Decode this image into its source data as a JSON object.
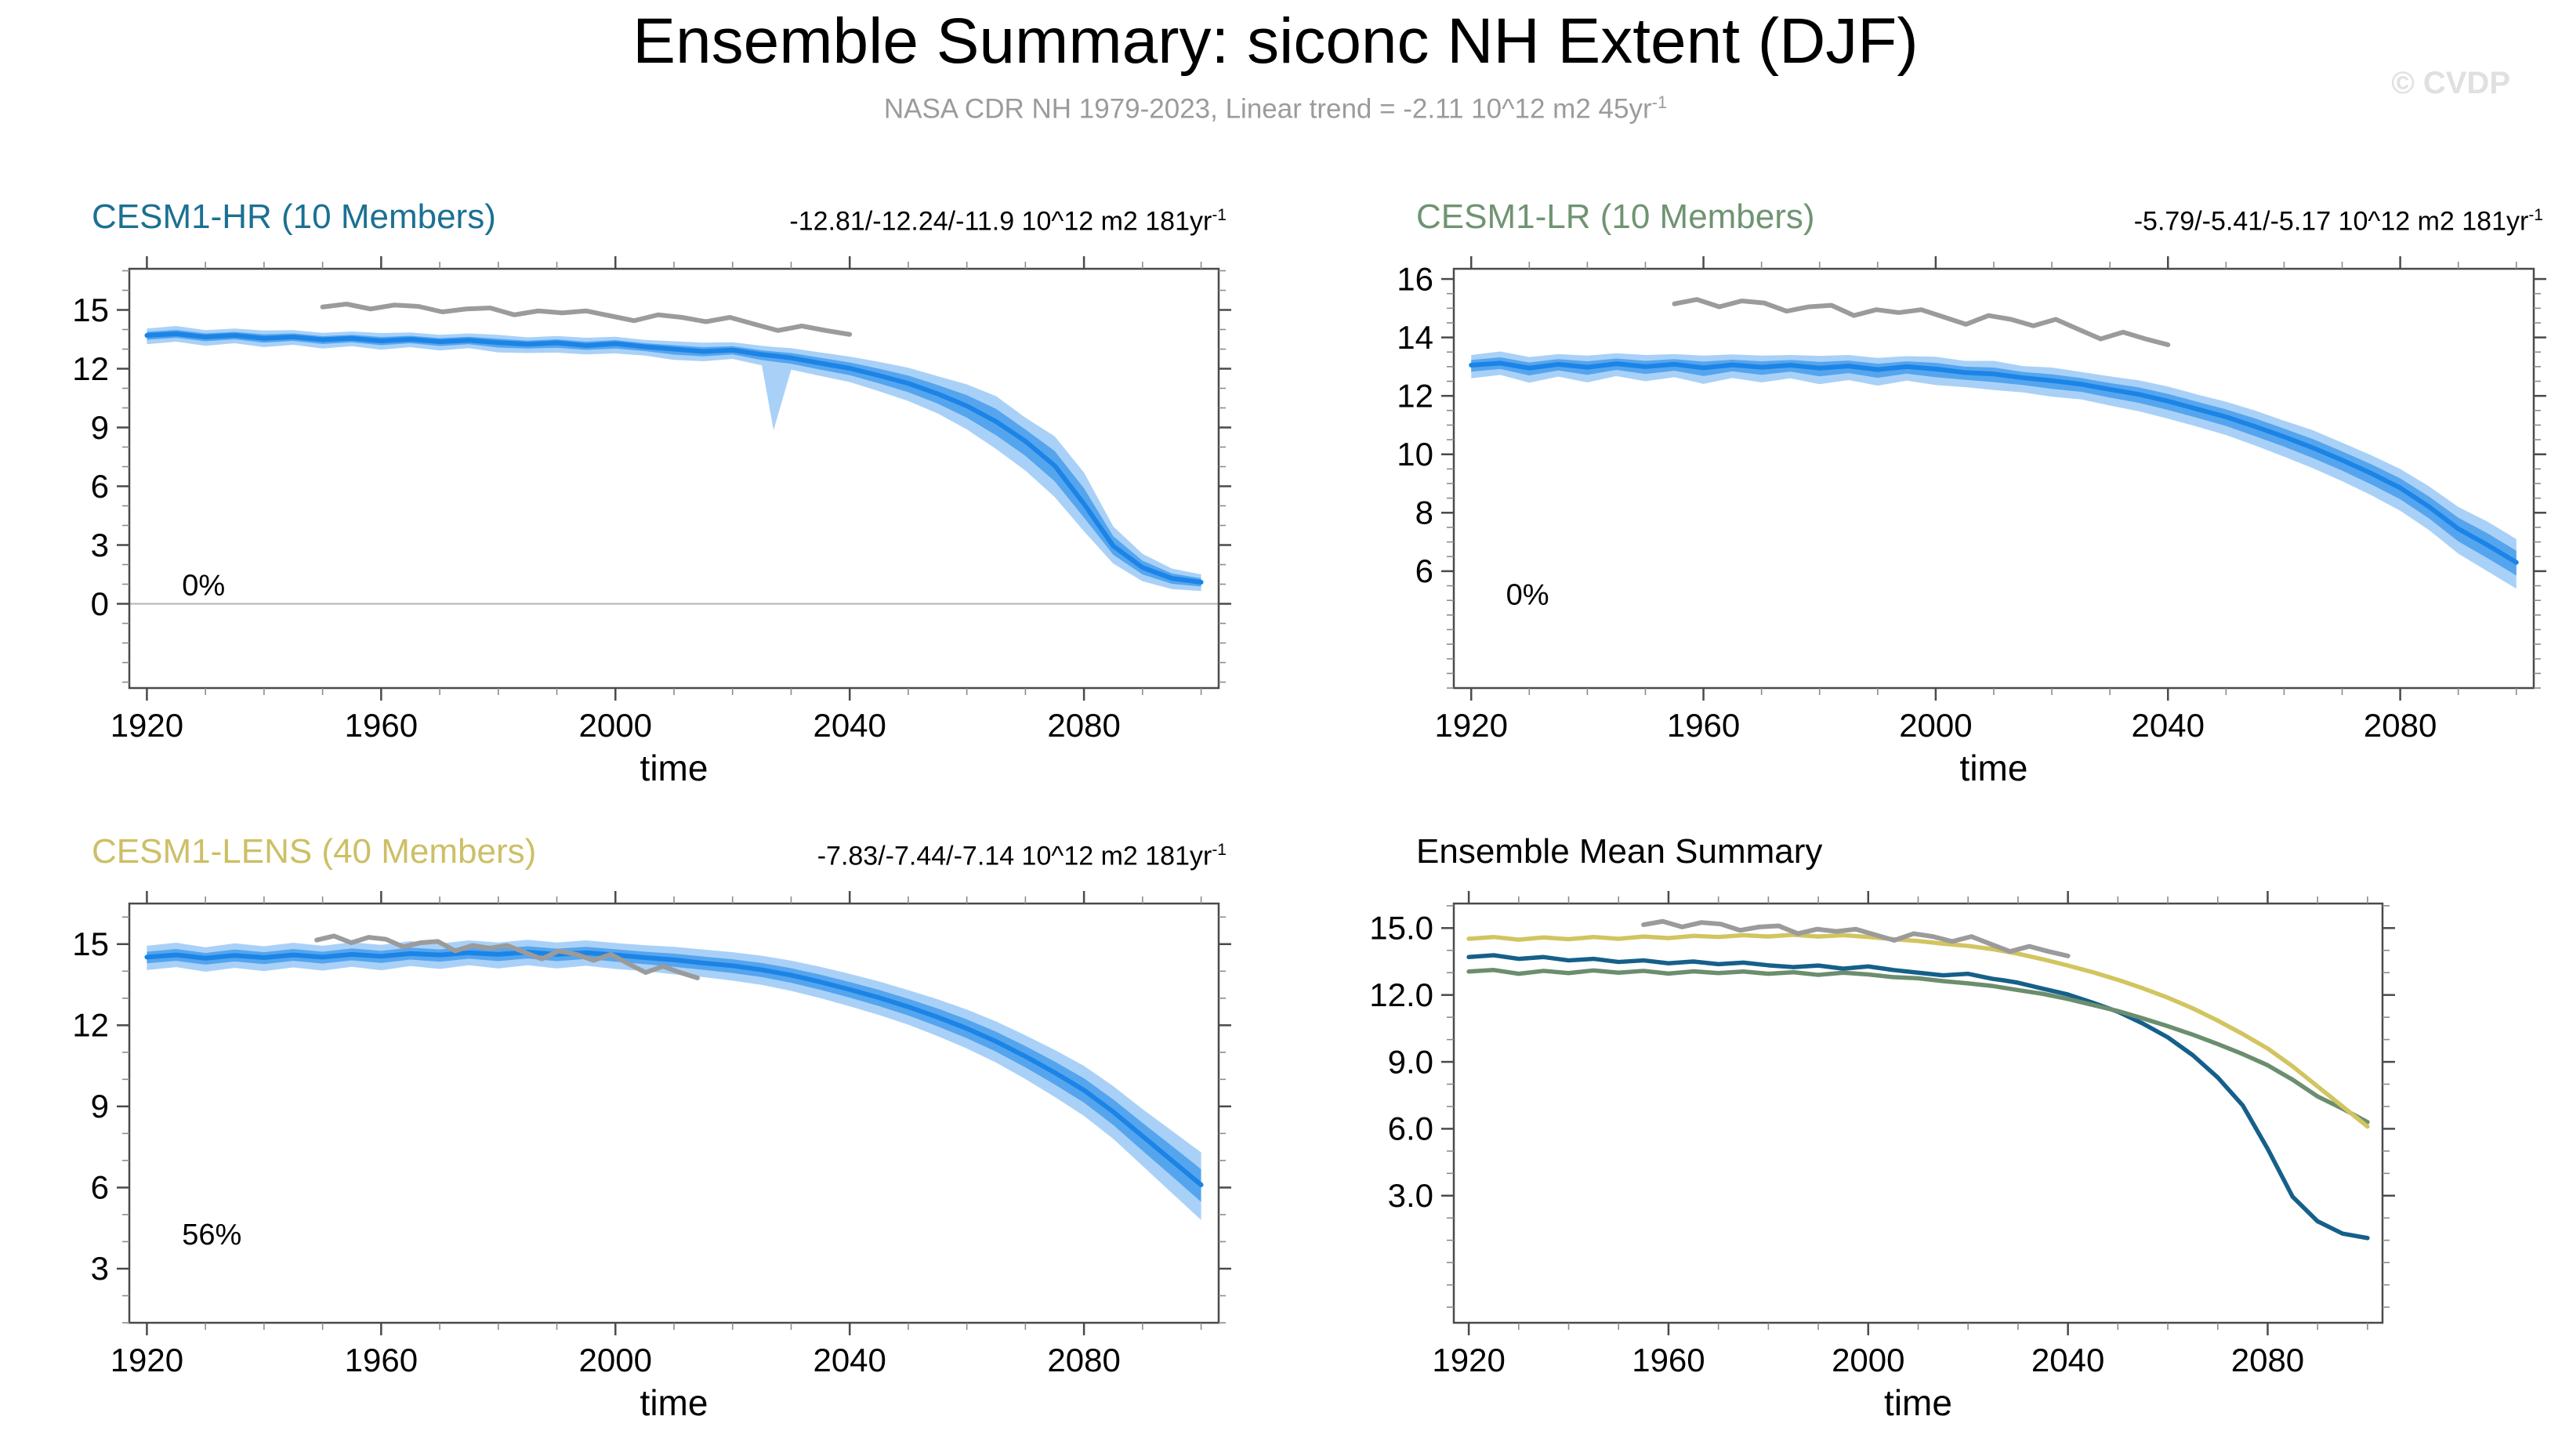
{
  "header": {
    "title": "Ensemble Summary: siconc NH Extent (DJF)",
    "subtitle_text": "NASA CDR NH 1979-2023, Linear trend = -2.11 10^12 m2 45yr",
    "subtitle_sup": "-1",
    "watermark": "© CVDP"
  },
  "obs_series": {
    "name": "NASA CDR NH 1979-2023",
    "color": "#9b9b9b",
    "years": [
      1979,
      1981,
      1983,
      1985,
      1987,
      1989,
      1991,
      1993,
      1995,
      1997,
      1999,
      2001,
      2003,
      2005,
      2007,
      2009,
      2011,
      2013,
      2015,
      2017,
      2019,
      2021,
      2023
    ],
    "values": [
      15.15,
      15.3,
      15.05,
      15.25,
      15.18,
      14.9,
      15.05,
      15.1,
      14.75,
      14.95,
      14.85,
      14.95,
      14.7,
      14.45,
      14.75,
      14.62,
      14.4,
      14.62,
      14.28,
      13.95,
      14.18,
      13.95,
      13.75
    ]
  },
  "chart_data": [
    {
      "id": "cesm1-hr",
      "type": "line",
      "title": "CESM1-HR (10 Members)",
      "title_color": "#1b7093",
      "trend_text": "-12.81/-12.24/-11.9 10^12 m2 181yr",
      "trend_sup": "-1",
      "xlabel": "time",
      "xlim": [
        1917,
        2103
      ],
      "ylim": [
        -4.3,
        17.1
      ],
      "xticks": [
        1920,
        1960,
        2000,
        2040,
        2080
      ],
      "xminor": 10,
      "yticks": [
        0,
        3,
        6,
        9,
        12,
        15
      ],
      "ylabels": [
        "0",
        "3",
        "6",
        "9",
        "12",
        "15"
      ],
      "yminor": 1,
      "zero_line": true,
      "annotation": {
        "text": "0%",
        "x": 1926,
        "y": 0.45
      },
      "band_outer_color": "#a9d1f8",
      "band_inner_color": "#55a5ee",
      "mean_color": "#1b84e6",
      "obs_axis_span": [
        1950,
        2040
      ],
      "years": [
        1920,
        1925,
        1930,
        1935,
        1940,
        1945,
        1950,
        1955,
        1960,
        1965,
        1970,
        1975,
        1980,
        1985,
        1990,
        1995,
        2000,
        2005,
        2010,
        2015,
        2020,
        2025,
        2027,
        2030,
        2035,
        2040,
        2045,
        2050,
        2055,
        2060,
        2065,
        2070,
        2075,
        2080,
        2085,
        2090,
        2095,
        2100
      ],
      "mean": [
        13.7,
        13.78,
        13.62,
        13.7,
        13.55,
        13.62,
        13.48,
        13.55,
        13.42,
        13.5,
        13.38,
        13.45,
        13.33,
        13.25,
        13.32,
        13.18,
        13.28,
        13.12,
        13.0,
        12.88,
        12.95,
        12.72,
        12.66,
        12.55,
        12.28,
        12.02,
        11.65,
        11.25,
        10.72,
        10.1,
        9.3,
        8.3,
        7.05,
        5.1,
        2.95,
        1.85,
        1.3,
        1.1
      ],
      "outer_hi": [
        0.35,
        0.4,
        0.35,
        0.35,
        0.4,
        0.35,
        0.35,
        0.35,
        0.4,
        0.35,
        0.35,
        0.35,
        0.4,
        0.35,
        0.35,
        0.4,
        0.35,
        0.35,
        0.4,
        0.45,
        0.4,
        0.45,
        0.45,
        0.5,
        0.55,
        0.6,
        0.7,
        0.8,
        0.9,
        1.1,
        1.3,
        1.2,
        1.5,
        1.6,
        1.0,
        0.7,
        0.5,
        0.4
      ],
      "outer_lo": [
        0.45,
        0.4,
        0.45,
        0.4,
        0.45,
        0.4,
        0.45,
        0.4,
        0.45,
        0.4,
        0.45,
        0.4,
        0.5,
        0.45,
        0.5,
        0.45,
        0.5,
        0.45,
        0.55,
        0.5,
        0.45,
        0.55,
        3.8,
        0.6,
        0.65,
        0.7,
        0.8,
        0.9,
        1.0,
        1.2,
        1.4,
        1.5,
        1.6,
        1.4,
        0.9,
        0.7,
        0.55,
        0.45
      ],
      "inner_hi": [
        0.18,
        0.2,
        0.18,
        0.18,
        0.2,
        0.18,
        0.18,
        0.18,
        0.2,
        0.18,
        0.18,
        0.18,
        0.2,
        0.18,
        0.18,
        0.2,
        0.18,
        0.18,
        0.2,
        0.22,
        0.2,
        0.22,
        0.22,
        0.25,
        0.28,
        0.3,
        0.35,
        0.4,
        0.45,
        0.55,
        0.65,
        0.6,
        0.75,
        0.8,
        0.5,
        0.35,
        0.25,
        0.2
      ],
      "inner_lo": [
        0.22,
        0.2,
        0.22,
        0.2,
        0.22,
        0.2,
        0.22,
        0.2,
        0.22,
        0.2,
        0.22,
        0.2,
        0.25,
        0.22,
        0.25,
        0.22,
        0.25,
        0.22,
        0.28,
        0.25,
        0.22,
        0.28,
        0.3,
        0.3,
        0.33,
        0.35,
        0.4,
        0.45,
        0.5,
        0.6,
        0.7,
        0.75,
        0.8,
        0.7,
        0.45,
        0.35,
        0.28,
        0.22
      ]
    },
    {
      "id": "cesm1-lr",
      "type": "line",
      "title": "CESM1-LR (10 Members)",
      "title_color": "#6f9472",
      "trend_text": "-5.79/-5.41/-5.17 10^12 m2 181yr",
      "trend_sup": "-1",
      "xlabel": "time",
      "xlim": [
        1917,
        2103
      ],
      "ylim": [
        2.0,
        16.35
      ],
      "xticks": [
        1920,
        1960,
        2000,
        2040,
        2080
      ],
      "xminor": 10,
      "yticks": [
        6,
        8,
        10,
        12,
        14,
        16
      ],
      "ylabels": [
        "6",
        "8",
        "10",
        "12",
        "14",
        "16"
      ],
      "yminor": 0.5,
      "zero_line": false,
      "annotation": {
        "text": "0%",
        "x": 1926,
        "y": 4.85
      },
      "band_outer_color": "#a9d1f8",
      "band_inner_color": "#55a5ee",
      "mean_color": "#1b84e6",
      "obs_axis_span": [
        1955,
        2040
      ],
      "years": [
        1920,
        1925,
        1930,
        1935,
        1940,
        1945,
        1950,
        1955,
        1960,
        1965,
        1970,
        1975,
        1980,
        1985,
        1990,
        1995,
        2000,
        2005,
        2010,
        2015,
        2020,
        2025,
        2030,
        2035,
        2040,
        2045,
        2050,
        2055,
        2060,
        2065,
        2070,
        2075,
        2080,
        2085,
        2090,
        2095,
        2100
      ],
      "mean": [
        13.05,
        13.12,
        12.95,
        13.08,
        12.98,
        13.1,
        13.0,
        13.08,
        12.96,
        13.06,
        12.98,
        13.05,
        12.95,
        13.02,
        12.9,
        13.0,
        12.92,
        12.8,
        12.75,
        12.62,
        12.52,
        12.4,
        12.22,
        12.05,
        11.82,
        11.55,
        11.28,
        10.95,
        10.6,
        10.22,
        9.8,
        9.35,
        8.85,
        8.2,
        7.45,
        6.9,
        6.3
      ],
      "outer_hi": [
        0.35,
        0.4,
        0.38,
        0.35,
        0.4,
        0.36,
        0.4,
        0.35,
        0.42,
        0.36,
        0.4,
        0.35,
        0.42,
        0.38,
        0.4,
        0.36,
        0.42,
        0.4,
        0.45,
        0.4,
        0.45,
        0.42,
        0.45,
        0.48,
        0.5,
        0.5,
        0.52,
        0.55,
        0.55,
        0.6,
        0.6,
        0.62,
        0.65,
        0.7,
        0.75,
        0.8,
        0.8
      ],
      "outer_lo": [
        0.45,
        0.4,
        0.5,
        0.42,
        0.52,
        0.42,
        0.5,
        0.44,
        0.55,
        0.45,
        0.52,
        0.45,
        0.55,
        0.48,
        0.55,
        0.48,
        0.55,
        0.5,
        0.55,
        0.5,
        0.55,
        0.52,
        0.55,
        0.58,
        0.6,
        0.6,
        0.62,
        0.65,
        0.68,
        0.7,
        0.72,
        0.75,
        0.78,
        0.8,
        0.85,
        0.9,
        0.9
      ],
      "inner_hi": [
        0.18,
        0.2,
        0.19,
        0.18,
        0.2,
        0.18,
        0.2,
        0.18,
        0.21,
        0.18,
        0.2,
        0.18,
        0.21,
        0.19,
        0.2,
        0.18,
        0.21,
        0.2,
        0.22,
        0.2,
        0.22,
        0.21,
        0.22,
        0.24,
        0.25,
        0.25,
        0.26,
        0.28,
        0.28,
        0.3,
        0.3,
        0.31,
        0.33,
        0.35,
        0.38,
        0.4,
        0.4
      ],
      "inner_lo": [
        0.22,
        0.2,
        0.25,
        0.21,
        0.26,
        0.21,
        0.25,
        0.22,
        0.28,
        0.22,
        0.26,
        0.22,
        0.28,
        0.24,
        0.28,
        0.24,
        0.28,
        0.25,
        0.28,
        0.25,
        0.28,
        0.26,
        0.28,
        0.29,
        0.3,
        0.3,
        0.31,
        0.33,
        0.34,
        0.35,
        0.36,
        0.38,
        0.39,
        0.4,
        0.43,
        0.45,
        0.45
      ]
    },
    {
      "id": "cesm1-lens",
      "type": "line",
      "title": "CESM1-LENS (40 Members)",
      "title_color": "#cdbf66",
      "trend_text": "-7.83/-7.44/-7.14 10^12 m2 181yr",
      "trend_sup": "-1",
      "xlabel": "time",
      "xlim": [
        1917,
        2103
      ],
      "ylim": [
        1.0,
        16.5
      ],
      "xticks": [
        1920,
        1960,
        2000,
        2040,
        2080
      ],
      "xminor": 10,
      "yticks": [
        3,
        6,
        9,
        12,
        15
      ],
      "ylabels": [
        "3",
        "6",
        "9",
        "12",
        "15"
      ],
      "yminor": 1,
      "zero_line": false,
      "annotation": {
        "text": "56%",
        "x": 1926,
        "y": 3.9
      },
      "band_outer_color": "#a9d1f8",
      "band_inner_color": "#55a5ee",
      "mean_color": "#1b84e6",
      "obs_axis_span": [
        1949,
        2014
      ],
      "years": [
        1920,
        1925,
        1930,
        1935,
        1940,
        1945,
        1950,
        1955,
        1960,
        1965,
        1970,
        1975,
        1980,
        1985,
        1990,
        1995,
        2000,
        2005,
        2010,
        2015,
        2020,
        2025,
        2030,
        2035,
        2040,
        2045,
        2050,
        2055,
        2060,
        2065,
        2070,
        2075,
        2080,
        2085,
        2090,
        2095,
        2100
      ],
      "mean": [
        14.52,
        14.6,
        14.48,
        14.58,
        14.5,
        14.6,
        14.52,
        14.62,
        14.55,
        14.65,
        14.6,
        14.68,
        14.62,
        14.7,
        14.62,
        14.68,
        14.6,
        14.5,
        14.42,
        14.3,
        14.2,
        14.05,
        13.85,
        13.6,
        13.32,
        13.02,
        12.68,
        12.3,
        11.88,
        11.4,
        10.85,
        10.25,
        9.6,
        8.8,
        7.9,
        7.0,
        6.1
      ],
      "outer_hi": [
        0.42,
        0.45,
        0.4,
        0.45,
        0.42,
        0.45,
        0.42,
        0.45,
        0.42,
        0.46,
        0.42,
        0.46,
        0.44,
        0.46,
        0.44,
        0.46,
        0.44,
        0.46,
        0.48,
        0.5,
        0.5,
        0.52,
        0.54,
        0.56,
        0.58,
        0.6,
        0.62,
        0.66,
        0.7,
        0.74,
        0.78,
        0.84,
        0.9,
        0.95,
        1.0,
        1.1,
        1.2
      ],
      "outer_lo": [
        0.48,
        0.45,
        0.5,
        0.46,
        0.5,
        0.46,
        0.5,
        0.46,
        0.52,
        0.46,
        0.52,
        0.46,
        0.52,
        0.48,
        0.52,
        0.48,
        0.52,
        0.5,
        0.54,
        0.52,
        0.55,
        0.56,
        0.58,
        0.6,
        0.62,
        0.64,
        0.66,
        0.7,
        0.74,
        0.78,
        0.84,
        0.9,
        0.95,
        1.0,
        1.1,
        1.2,
        1.3
      ],
      "inner_hi": [
        0.2,
        0.22,
        0.19,
        0.22,
        0.2,
        0.22,
        0.2,
        0.22,
        0.2,
        0.22,
        0.2,
        0.22,
        0.21,
        0.22,
        0.21,
        0.22,
        0.21,
        0.22,
        0.23,
        0.24,
        0.24,
        0.25,
        0.26,
        0.27,
        0.28,
        0.29,
        0.3,
        0.32,
        0.34,
        0.36,
        0.38,
        0.41,
        0.44,
        0.46,
        0.49,
        0.54,
        0.58
      ],
      "inner_lo": [
        0.23,
        0.22,
        0.24,
        0.22,
        0.24,
        0.22,
        0.24,
        0.22,
        0.25,
        0.22,
        0.25,
        0.22,
        0.25,
        0.23,
        0.25,
        0.23,
        0.25,
        0.24,
        0.26,
        0.25,
        0.27,
        0.27,
        0.28,
        0.29,
        0.3,
        0.31,
        0.32,
        0.34,
        0.36,
        0.38,
        0.41,
        0.44,
        0.46,
        0.49,
        0.54,
        0.58,
        0.63
      ]
    },
    {
      "id": "summary",
      "type": "line",
      "title": "Ensemble Mean Summary",
      "title_color": "#000000",
      "xlabel": "time",
      "xlim": [
        1917,
        2103
      ],
      "ylim": [
        -2.7,
        16.1
      ],
      "xticks": [
        1920,
        1960,
        2000,
        2040,
        2080
      ],
      "xminor": 10,
      "yticks": [
        3,
        6,
        9,
        12,
        15
      ],
      "ylabels": [
        "3.0",
        "6.0",
        "9.0",
        "12.0",
        "15.0"
      ],
      "yminor": 1,
      "zero_line": false,
      "obs_axis_span": [
        1955,
        2040
      ],
      "lines": [
        {
          "name": "CESM1-HR",
          "ref": "cesm1-hr",
          "color": "#15608a"
        },
        {
          "name": "CESM1-LR",
          "ref": "cesm1-lr",
          "color": "#6b8e6e"
        },
        {
          "name": "CESM1-LENS",
          "ref": "cesm1-lens",
          "color": "#d2c45f"
        }
      ]
    }
  ]
}
